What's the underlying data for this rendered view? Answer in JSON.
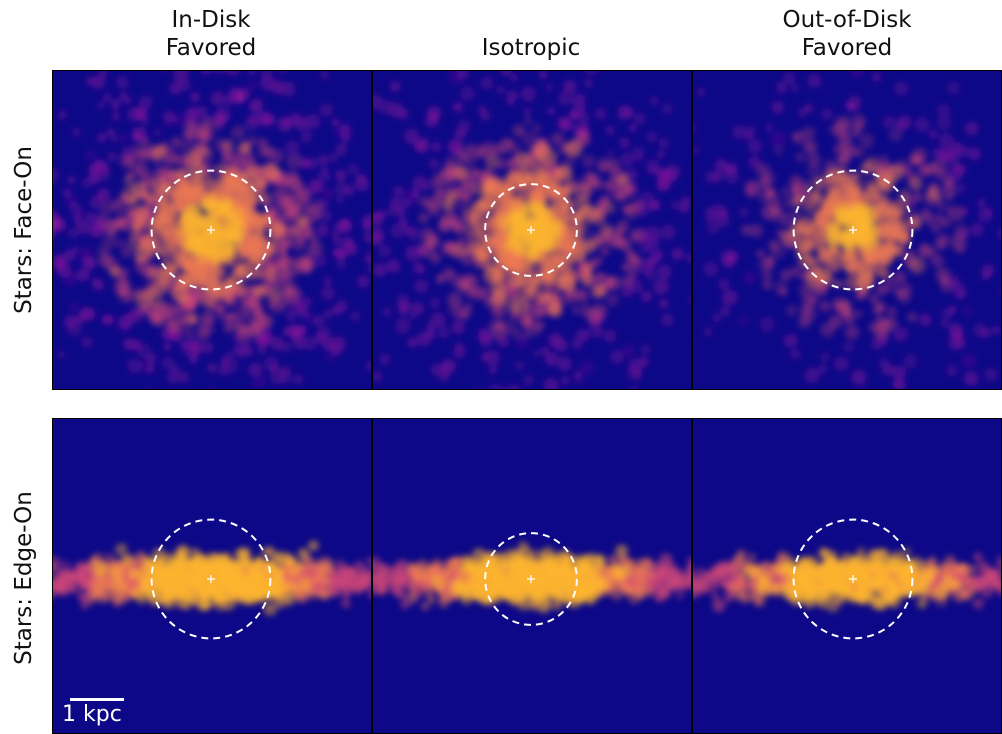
{
  "columns": [
    {
      "title": "In-Disk\nFavored"
    },
    {
      "title": "Isotropic"
    },
    {
      "title": "Out-of-Disk\nFavored"
    }
  ],
  "rows": [
    {
      "label": "Stars: Face-On",
      "view": "face-on"
    },
    {
      "label": "Stars: Edge-On",
      "view": "edge-on"
    }
  ],
  "scale_bar": {
    "label": "1 kpc",
    "length_kpc": 1
  },
  "colormap": {
    "name": "plasma",
    "background": "#0d0887",
    "stops": [
      "#0d0887",
      "#5c01a6",
      "#9c179e",
      "#cc4778",
      "#ed7953",
      "#fdb42f",
      "#f0f921"
    ]
  },
  "marker_color": "#ffffff",
  "circle_style": "white dashed",
  "panels": [
    {
      "row": 0,
      "col": 0,
      "circle_radius_kpc": 1.1,
      "halo_strength": 1.0,
      "core_strength": 0.9
    },
    {
      "row": 0,
      "col": 1,
      "circle_radius_kpc": 0.85,
      "halo_strength": 0.7,
      "core_strength": 0.95
    },
    {
      "row": 0,
      "col": 2,
      "circle_radius_kpc": 1.1,
      "halo_strength": 0.45,
      "core_strength": 0.6
    },
    {
      "row": 1,
      "col": 0,
      "circle_radius_kpc": 1.1,
      "halo_strength": 1.0,
      "core_strength": 0.95
    },
    {
      "row": 1,
      "col": 1,
      "circle_radius_kpc": 0.85,
      "halo_strength": 0.8,
      "core_strength": 0.95
    },
    {
      "row": 1,
      "col": 2,
      "circle_radius_kpc": 1.1,
      "halo_strength": 0.55,
      "core_strength": 0.75
    }
  ]
}
